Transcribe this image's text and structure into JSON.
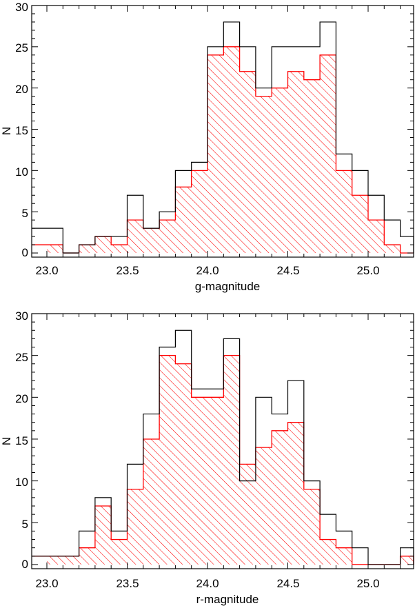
{
  "chart_data": [
    {
      "type": "bar",
      "xlabel": "g-magnitude",
      "ylabel": "N",
      "xlim": [
        23.0,
        25.4
      ],
      "ylim": [
        -0.5,
        30
      ],
      "xticks": [
        "23.0",
        "23.5",
        "24.0",
        "24.5",
        "25.0"
      ],
      "yticks": [
        "0",
        "5",
        "10",
        "15",
        "20",
        "25",
        "30"
      ],
      "bin_width": 0.1,
      "bin_starts": [
        23.0,
        23.1,
        23.2,
        23.3,
        23.4,
        23.5,
        23.6,
        23.7,
        23.8,
        23.9,
        24.0,
        24.1,
        24.2,
        24.3,
        24.4,
        24.5,
        24.6,
        24.7,
        24.8,
        24.9,
        25.0,
        25.1,
        25.2,
        25.3
      ],
      "series": [
        {
          "values": [
            3,
            0,
            1,
            2,
            2,
            7,
            3,
            5,
            10,
            11,
            25,
            28,
            25,
            20,
            25,
            25,
            25,
            28,
            12,
            10,
            7,
            4,
            2,
            0
          ],
          "color": "#000000",
          "fill": "none"
        },
        {
          "values": [
            1,
            0,
            1,
            2,
            1,
            4,
            3,
            4,
            8,
            10,
            24,
            25,
            22,
            19,
            20,
            22,
            21,
            24,
            10,
            7,
            4,
            1,
            0,
            0
          ],
          "color": "#ff0000",
          "fill": "hatched"
        }
      ]
    },
    {
      "type": "bar",
      "xlabel": "r-magnitude",
      "ylabel": "N",
      "xlim": [
        23.0,
        25.4
      ],
      "ylim": [
        -0.5,
        30
      ],
      "xticks": [
        "23.0",
        "23.5",
        "24.0",
        "24.5",
        "25.0"
      ],
      "yticks": [
        "0",
        "5",
        "10",
        "15",
        "20",
        "25",
        "30"
      ],
      "bin_width": 0.1,
      "bin_starts": [
        23.0,
        23.1,
        23.2,
        23.3,
        23.4,
        23.5,
        23.6,
        23.7,
        23.8,
        23.9,
        24.0,
        24.1,
        24.2,
        24.3,
        24.4,
        24.5,
        24.6,
        24.7,
        24.8,
        24.9,
        25.0,
        25.1,
        25.2,
        25.3
      ],
      "series": [
        {
          "values": [
            1,
            1,
            4,
            8,
            4,
            12,
            18,
            26,
            28,
            21,
            21,
            27,
            10,
            20,
            18,
            22,
            10,
            6,
            4,
            2,
            0,
            0,
            2,
            1
          ],
          "color": "#000000",
          "fill": "none"
        },
        {
          "values": [
            1,
            1,
            2,
            7,
            3,
            9,
            15,
            25,
            24,
            20,
            20,
            25,
            12,
            14,
            16,
            17,
            9,
            3,
            2,
            0,
            0,
            0,
            1,
            1
          ],
          "color": "#ff0000",
          "fill": "hatched"
        }
      ]
    }
  ]
}
